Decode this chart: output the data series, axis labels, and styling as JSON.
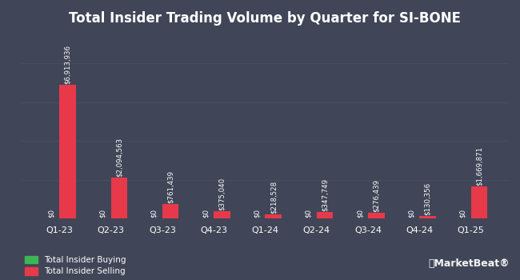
{
  "title": "Total Insider Trading Volume by Quarter for SI-BONE",
  "quarters": [
    "Q1-23",
    "Q2-23",
    "Q3-23",
    "Q4-23",
    "Q1-24",
    "Q2-24",
    "Q3-24",
    "Q4-24",
    "Q1-25"
  ],
  "buying": [
    0,
    0,
    0,
    0,
    0,
    0,
    0,
    0,
    0
  ],
  "selling": [
    6913936,
    2094563,
    761439,
    375040,
    218528,
    347749,
    276439,
    130356,
    1669871
  ],
  "buying_labels": [
    "$0",
    "$0",
    "$0",
    "$0",
    "$0",
    "$0",
    "$0",
    "$0",
    "$0"
  ],
  "selling_labels": [
    "$6,913,936",
    "$2,094,563",
    "$761,439",
    "$375,040",
    "$218,528",
    "$347,749",
    "$276,439",
    "$130,356",
    "$1,669,871"
  ],
  "buying_color": "#3cb554",
  "selling_color": "#e8394a",
  "background_color": "#404657",
  "text_color": "#ffffff",
  "grid_color": "#4d5263",
  "bar_width": 0.32,
  "legend_buying": "Total Insider Buying",
  "legend_selling": "Total Insider Selling",
  "title_fontsize": 12,
  "label_fontsize": 6.2,
  "tick_fontsize": 8,
  "legend_fontsize": 7.5,
  "marketbeat_fontsize": 9
}
